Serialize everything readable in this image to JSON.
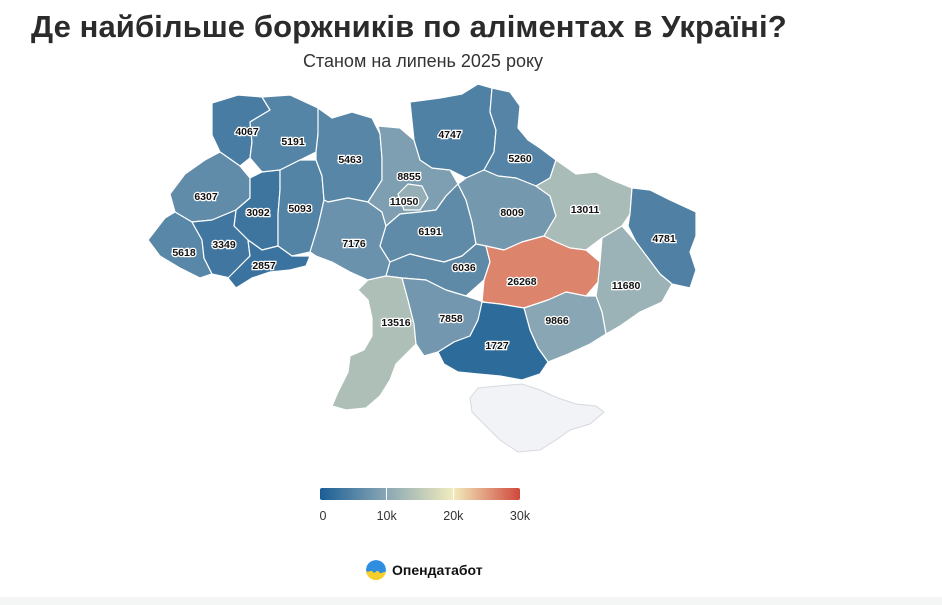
{
  "title": "Де найбільше боржників по аліментах в Україні?",
  "subtitle": "Станом на липень 2025 року",
  "legend": {
    "min": 0,
    "max": 30000,
    "ticks": [
      {
        "value": 0,
        "label": "0"
      },
      {
        "value": 10000,
        "label": "10k"
      },
      {
        "value": 20000,
        "label": "20k"
      },
      {
        "value": 30000,
        "label": "30k"
      }
    ],
    "colors": [
      "#1a5e96",
      "#8aa7b4",
      "#f1ecbd",
      "#d0483c"
    ]
  },
  "brand": "Опендатабот",
  "regions": [
    {
      "id": "volyn",
      "value": 4067,
      "label": "4067"
    },
    {
      "id": "rivne",
      "value": 5191,
      "label": "5191"
    },
    {
      "id": "lviv",
      "value": 6307,
      "label": "6307"
    },
    {
      "id": "ternopil",
      "value": 3092,
      "label": "3092"
    },
    {
      "id": "khmelnytskyi",
      "value": 5093,
      "label": "5093"
    },
    {
      "id": "zakarpattia",
      "value": 5618,
      "label": "5618"
    },
    {
      "id": "ivano-frankivsk",
      "value": 3349,
      "label": "3349"
    },
    {
      "id": "chernivtsi",
      "value": 2857,
      "label": "2857"
    },
    {
      "id": "zhytomyr",
      "value": 5463,
      "label": "5463"
    },
    {
      "id": "vinnytsia",
      "value": 7176,
      "label": "7176"
    },
    {
      "id": "kyiv-oblast",
      "value": 8855,
      "label": "8855"
    },
    {
      "id": "kyiv-city",
      "value": 11050,
      "label": "11050"
    },
    {
      "id": "chernihiv",
      "value": 4747,
      "label": "4747"
    },
    {
      "id": "sumy",
      "value": 5260,
      "label": "5260"
    },
    {
      "id": "cherkasy",
      "value": 6191,
      "label": "6191"
    },
    {
      "id": "poltava",
      "value": 8009,
      "label": "8009"
    },
    {
      "id": "kharkiv",
      "value": 13011,
      "label": "13011"
    },
    {
      "id": "luhansk",
      "value": 4781,
      "label": "4781"
    },
    {
      "id": "kirovohrad",
      "value": 6036,
      "label": "6036"
    },
    {
      "id": "dnipropetrovsk",
      "value": 26268,
      "label": "26268"
    },
    {
      "id": "donetsk",
      "value": 11680,
      "label": "11680"
    },
    {
      "id": "odesa",
      "value": 13516,
      "label": "13516"
    },
    {
      "id": "mykolaiv",
      "value": 7858,
      "label": "7858"
    },
    {
      "id": "zaporizhzhia",
      "value": 9866,
      "label": "9866"
    },
    {
      "id": "kherson",
      "value": 1727,
      "label": "1727"
    }
  ]
}
